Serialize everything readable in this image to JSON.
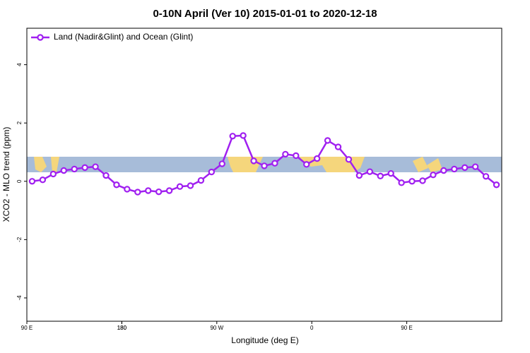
{
  "chart_data": {
    "type": "line",
    "title": "0-10N April (Ver 10)   2015-01-01 to 2020-12-18",
    "x_label": "Longitude (deg E)",
    "y_label": "XCO2 - MLO trend (ppm)",
    "x": [
      95,
      105,
      115,
      125,
      135,
      145,
      155,
      165,
      175,
      185,
      195,
      205,
      215,
      225,
      235,
      245,
      255,
      265,
      275,
      285,
      295,
      305,
      315,
      325,
      335,
      345,
      355,
      365,
      375,
      385,
      395,
      405,
      415,
      425,
      435,
      445,
      455,
      465,
      475,
      485,
      495,
      505,
      515,
      525,
      535
    ],
    "series": [
      {
        "name": "Land (Nadir&Glint) and Ocean (Glint)",
        "color": "#a020f0",
        "values": [
          0,
          0.05,
          0.25,
          0.37,
          0.42,
          0.47,
          0.5,
          0.2,
          -0.12,
          -0.27,
          -0.37,
          -0.32,
          -0.36,
          -0.32,
          -0.18,
          -0.15,
          0.03,
          0.32,
          0.6,
          1.55,
          1.57,
          0.7,
          0.53,
          0.62,
          0.93,
          0.88,
          0.58,
          0.78,
          1.4,
          1.18,
          0.75,
          0.2,
          0.33,
          0.18,
          0.27,
          -0.05,
          0,
          0.02,
          0.22,
          0.37,
          0.42,
          0.47,
          0.5,
          0.17,
          -0.12
        ]
      }
    ],
    "xlim": [
      90,
      540
    ],
    "xticks": [
      {
        "value": 90,
        "label": "90 E"
      },
      180,
      {
        "value": 270,
        "label": "90 W"
      },
      {
        "value": 360,
        "label": "0"
      },
      {
        "value": 450,
        "label": "90 E"
      },
      180.0001
    ],
    "ylim": [
      -4.8,
      5.25
    ],
    "yticks": [
      -4,
      -2,
      0,
      2,
      4
    ],
    "legend": "top-left"
  }
}
